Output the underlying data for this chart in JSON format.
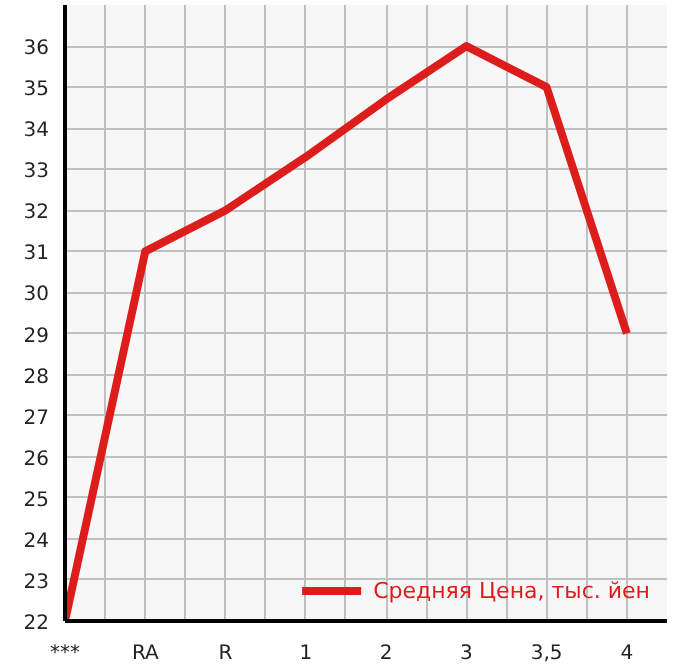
{
  "chart_data": {
    "type": "line",
    "categories": [
      "***",
      "RA",
      "R",
      "1",
      "2",
      "3",
      "3,5",
      "4"
    ],
    "series": [
      {
        "name": "Средняя Цена, тыс. йен",
        "color": "#dd1c1c",
        "values": [
          22,
          31,
          32,
          33.3,
          34.7,
          36,
          35,
          29
        ]
      }
    ],
    "ylim": [
      22,
      37
    ],
    "yticks": [
      22,
      23,
      24,
      25,
      26,
      27,
      28,
      29,
      30,
      31,
      32,
      33,
      34,
      35,
      36
    ],
    "grid": true,
    "legend": "bottom right",
    "marker": "none",
    "line_style": "solid"
  }
}
